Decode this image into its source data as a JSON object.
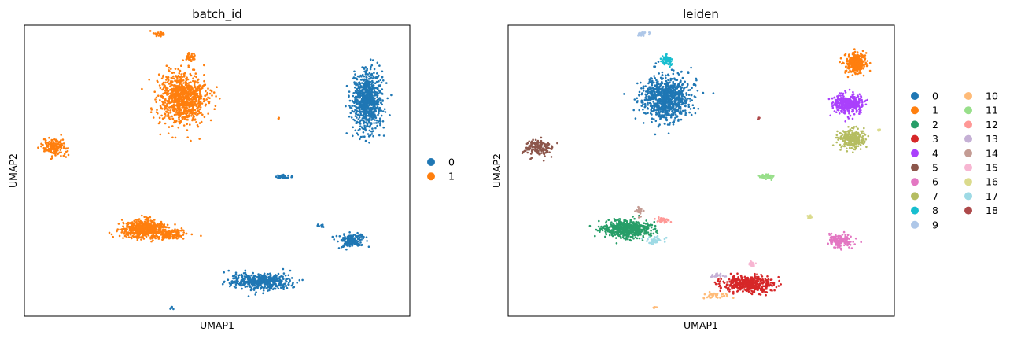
{
  "chart_data": [
    {
      "type": "scatter",
      "title": "batch_id",
      "xlabel": "UMAP1",
      "ylabel": "UMAP2",
      "xlim": [
        0,
        100
      ],
      "ylim": [
        0,
        100
      ],
      "grid": false,
      "ticks": false,
      "legend_position": "right",
      "legend": [
        {
          "label": "0",
          "color": "#1f77b4"
        },
        {
          "label": "1",
          "color": "#ff7f0e"
        }
      ],
      "clusters": [
        {
          "category": "1",
          "center": [
            41,
            75
          ],
          "spread": [
            5.5,
            8
          ],
          "n": 900
        },
        {
          "category": "1",
          "center": [
            43,
            89
          ],
          "spread": [
            1.2,
            1.3
          ],
          "n": 40
        },
        {
          "category": "1",
          "center": [
            35,
            97
          ],
          "spread": [
            1.5,
            0.8
          ],
          "n": 25
        },
        {
          "category": "1",
          "center": [
            8,
            58
          ],
          "spread": [
            3,
            2.5
          ],
          "n": 160
        },
        {
          "category": "1",
          "center": [
            31,
            30
          ],
          "spread": [
            5.5,
            2.5
          ],
          "n": 600
        },
        {
          "category": "1",
          "center": [
            38,
            28
          ],
          "spread": [
            4,
            1.2
          ],
          "n": 120
        },
        {
          "category": "1",
          "center": [
            66,
            68
          ],
          "spread": [
            0.3,
            0.3
          ],
          "n": 4
        },
        {
          "category": "0",
          "center": [
            89,
            74
          ],
          "spread": [
            3.5,
            9
          ],
          "n": 850
        },
        {
          "category": "0",
          "center": [
            67,
            48
          ],
          "spread": [
            1.8,
            0.6
          ],
          "n": 40
        },
        {
          "category": "0",
          "center": [
            85,
            26
          ],
          "spread": [
            3,
            2
          ],
          "n": 170
        },
        {
          "category": "0",
          "center": [
            77,
            31
          ],
          "spread": [
            0.8,
            0.5
          ],
          "n": 10
        },
        {
          "category": "0",
          "center": [
            61,
            12
          ],
          "spread": [
            7,
            2.5
          ],
          "n": 480
        },
        {
          "category": "0",
          "center": [
            38,
            3
          ],
          "spread": [
            0.4,
            0.4
          ],
          "n": 5
        }
      ]
    },
    {
      "type": "scatter",
      "title": "leiden",
      "xlabel": "UMAP1",
      "ylabel": "UMAP2",
      "xlim": [
        0,
        100
      ],
      "ylim": [
        0,
        100
      ],
      "grid": false,
      "ticks": false,
      "legend_position": "right",
      "legend": [
        {
          "label": "0",
          "color": "#1f77b4"
        },
        {
          "label": "1",
          "color": "#ff7f0e"
        },
        {
          "label": "2",
          "color": "#279e68"
        },
        {
          "label": "3",
          "color": "#d62728"
        },
        {
          "label": "4",
          "color": "#aa40fc"
        },
        {
          "label": "5",
          "color": "#8c564b"
        },
        {
          "label": "6",
          "color": "#e377c2"
        },
        {
          "label": "7",
          "color": "#b5bd61"
        },
        {
          "label": "8",
          "color": "#17becf"
        },
        {
          "label": "9",
          "color": "#aec7e8"
        },
        {
          "label": "10",
          "color": "#ffbb78"
        },
        {
          "label": "11",
          "color": "#98df8a"
        },
        {
          "label": "12",
          "color": "#ff9896"
        },
        {
          "label": "13",
          "color": "#c5b0d5"
        },
        {
          "label": "14",
          "color": "#c49c94"
        },
        {
          "label": "15",
          "color": "#f7b6d2"
        },
        {
          "label": "16",
          "color": "#dbdb8d"
        },
        {
          "label": "17",
          "color": "#9edae5"
        },
        {
          "label": "18",
          "color": "#ad494a"
        }
      ],
      "clusters": [
        {
          "category": "0",
          "center": [
            41,
            75
          ],
          "spread": [
            5.5,
            7
          ],
          "n": 900
        },
        {
          "category": "8",
          "center": [
            41,
            88
          ],
          "spread": [
            1.2,
            1.5
          ],
          "n": 60
        },
        {
          "category": "9",
          "center": [
            35,
            97
          ],
          "spread": [
            1.5,
            0.8
          ],
          "n": 25
        },
        {
          "category": "5",
          "center": [
            8,
            58
          ],
          "spread": [
            3,
            2.5
          ],
          "n": 160
        },
        {
          "category": "2",
          "center": [
            31,
            30
          ],
          "spread": [
            5.5,
            2.5
          ],
          "n": 600
        },
        {
          "category": "14",
          "center": [
            34,
            36
          ],
          "spread": [
            0.8,
            1.5
          ],
          "n": 30
        },
        {
          "category": "12",
          "center": [
            40,
            33
          ],
          "spread": [
            1.5,
            0.6
          ],
          "n": 40
        },
        {
          "category": "17",
          "center": [
            38,
            26
          ],
          "spread": [
            2.5,
            1.2
          ],
          "n": 40
        },
        {
          "category": "1",
          "center": [
            90,
            87
          ],
          "spread": [
            2.5,
            3
          ],
          "n": 350
        },
        {
          "category": "4",
          "center": [
            88,
            73
          ],
          "spread": [
            3.5,
            3
          ],
          "n": 350
        },
        {
          "category": "7",
          "center": [
            89,
            61
          ],
          "spread": [
            3,
            3
          ],
          "n": 280
        },
        {
          "category": "16",
          "center": [
            96,
            64
          ],
          "spread": [
            0.3,
            0.3
          ],
          "n": 5
        },
        {
          "category": "18",
          "center": [
            65,
            68
          ],
          "spread": [
            0.3,
            0.3
          ],
          "n": 4
        },
        {
          "category": "11",
          "center": [
            67,
            48
          ],
          "spread": [
            1.8,
            0.6
          ],
          "n": 40
        },
        {
          "category": "16",
          "center": [
            78,
            34
          ],
          "spread": [
            0.6,
            0.6
          ],
          "n": 10
        },
        {
          "category": "6",
          "center": [
            86,
            26
          ],
          "spread": [
            3,
            2
          ],
          "n": 170
        },
        {
          "category": "3",
          "center": [
            62,
            11
          ],
          "spread": [
            6,
            2.5
          ],
          "n": 480
        },
        {
          "category": "15",
          "center": [
            63,
            18
          ],
          "spread": [
            0.8,
            0.7
          ],
          "n": 25
        },
        {
          "category": "13",
          "center": [
            54,
            14
          ],
          "spread": [
            1.5,
            0.6
          ],
          "n": 20
        },
        {
          "category": "10",
          "center": [
            54,
            7
          ],
          "spread": [
            3.5,
            1
          ],
          "n": 40
        },
        {
          "category": "10",
          "center": [
            38,
            3
          ],
          "spread": [
            0.4,
            0.4
          ],
          "n": 5
        }
      ]
    }
  ]
}
